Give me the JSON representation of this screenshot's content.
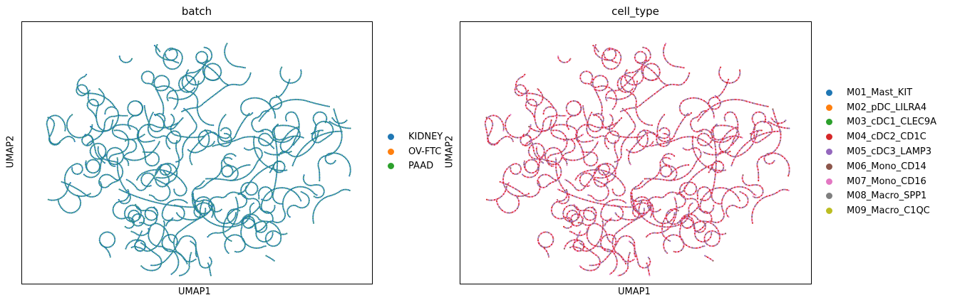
{
  "chart_data": [
    {
      "type": "scatter",
      "title": "batch",
      "xlabel": "UMAP1",
      "ylabel": "UMAP2",
      "legend_position": "right",
      "grid": false,
      "ticks_shown": false,
      "legend": [
        {
          "label": "KIDNEY",
          "color": "#1f77b4"
        },
        {
          "label": "OV-FTC",
          "color": "#ff7f0e"
        },
        {
          "label": "PAAD",
          "color": "#2ca02c"
        }
      ],
      "point_color_dominant": "#277f8e"
    },
    {
      "type": "scatter",
      "title": "cell_type",
      "xlabel": "UMAP1",
      "ylabel": "UMAP2",
      "legend_position": "right",
      "grid": false,
      "ticks_shown": false,
      "legend": [
        {
          "label": "M01_Mast_KIT",
          "color": "#1f77b4"
        },
        {
          "label": "M02_pDC_LILRA4",
          "color": "#ff7f0e"
        },
        {
          "label": "M03_cDC1_CLEC9A",
          "color": "#2ca02c"
        },
        {
          "label": "M04_cDC2_CD1C",
          "color": "#d62728"
        },
        {
          "label": "M05_cDC3_LAMP3",
          "color": "#9467bd"
        },
        {
          "label": "M06_Mono_CD14",
          "color": "#8c564b"
        },
        {
          "label": "M07_Mono_CD16",
          "color": "#e377c2"
        },
        {
          "label": "M08_Macro_SPP1",
          "color": "#7f7f7f"
        },
        {
          "label": "M09_Macro_C1QC",
          "color": "#bcbd22"
        }
      ],
      "point_color_dominant": "#c85a6e"
    }
  ]
}
